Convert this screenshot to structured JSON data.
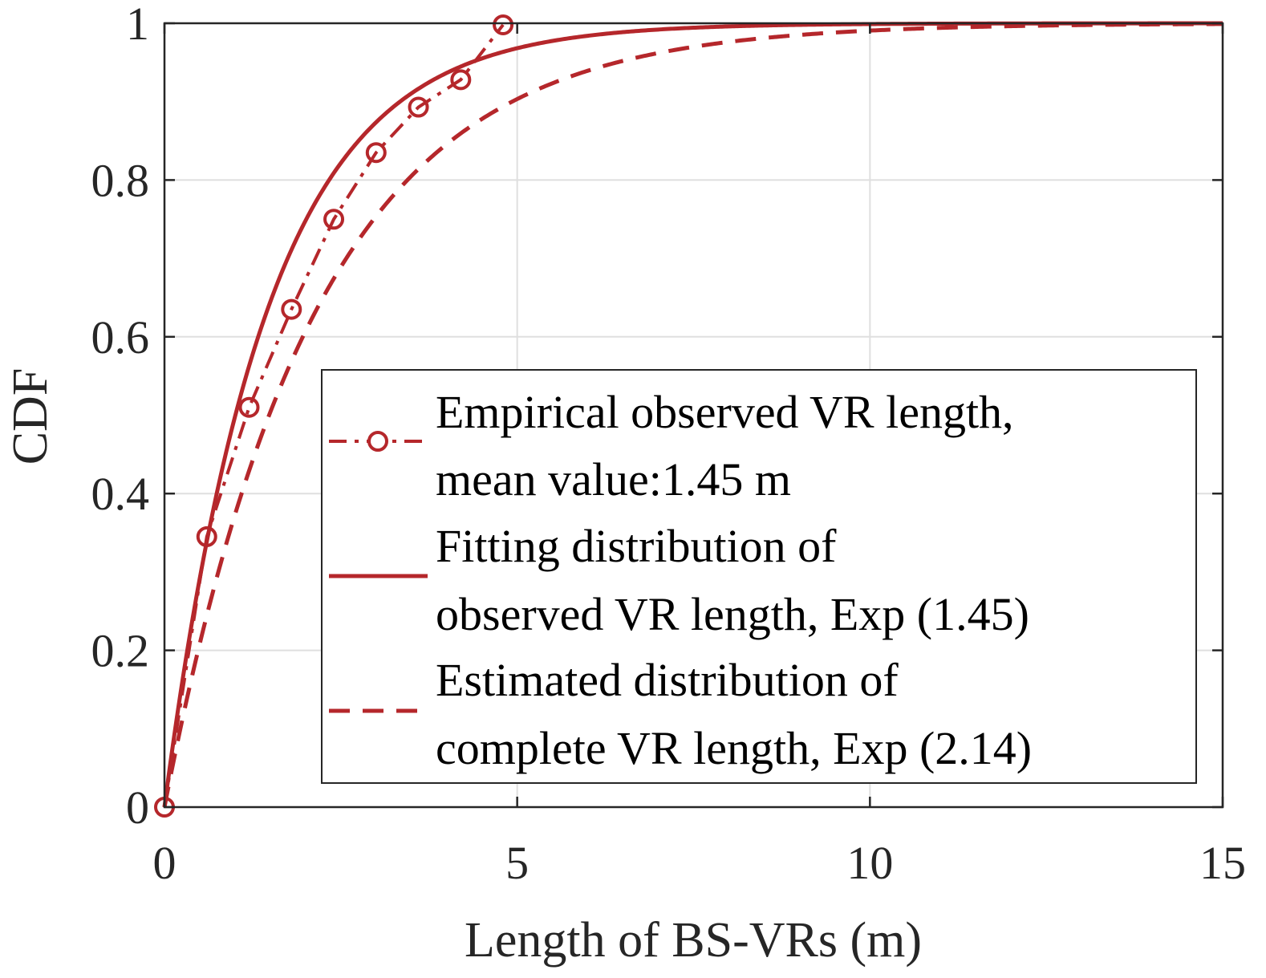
{
  "colors": {
    "series": "#b5272b",
    "axis": "#262626",
    "grid": "#dfdfdf"
  },
  "chart_data": {
    "type": "line",
    "title": "",
    "xlabel": "Length of BS-VRs (m)",
    "ylabel": "CDF",
    "xlim": [
      0,
      15
    ],
    "ylim": [
      0,
      1
    ],
    "xticks": [
      0,
      5,
      10,
      15
    ],
    "xtick_labels": [
      "0",
      "5",
      "10",
      "15"
    ],
    "yticks": [
      0,
      0.2,
      0.4,
      0.6,
      0.8,
      1
    ],
    "ytick_labels": [
      "0",
      "0.2",
      "0.4",
      "0.6",
      "0.8",
      "1"
    ],
    "grid": true,
    "legend_position": "bottom-right",
    "series": [
      {
        "name": "Empirical observed VR length, mean value:1.45 m",
        "legend_lines": [
          "Empirical observed VR length,",
          "mean value:1.45 m"
        ],
        "style": "dash-dot with circle markers",
        "x": [
          0,
          0.6,
          1.2,
          1.8,
          2.4,
          3.0,
          3.6,
          4.2,
          4.8
        ],
        "y": [
          0,
          0.345,
          0.51,
          0.635,
          0.75,
          0.835,
          0.893,
          0.928,
          0.998
        ]
      },
      {
        "name": "Fitting distribution of observed VR length, Exp (1.45)",
        "legend_lines": [
          "Fitting distribution of",
          "observed VR length, Exp (1.45)"
        ],
        "style": "solid",
        "distribution": "exponential",
        "mean": 1.45
      },
      {
        "name": "Estimated distribution of complete VR length, Exp (2.14)",
        "legend_lines": [
          "Estimated distribution of",
          "complete VR length, Exp (2.14)"
        ],
        "style": "dashed",
        "distribution": "exponential",
        "mean": 2.14
      }
    ]
  }
}
